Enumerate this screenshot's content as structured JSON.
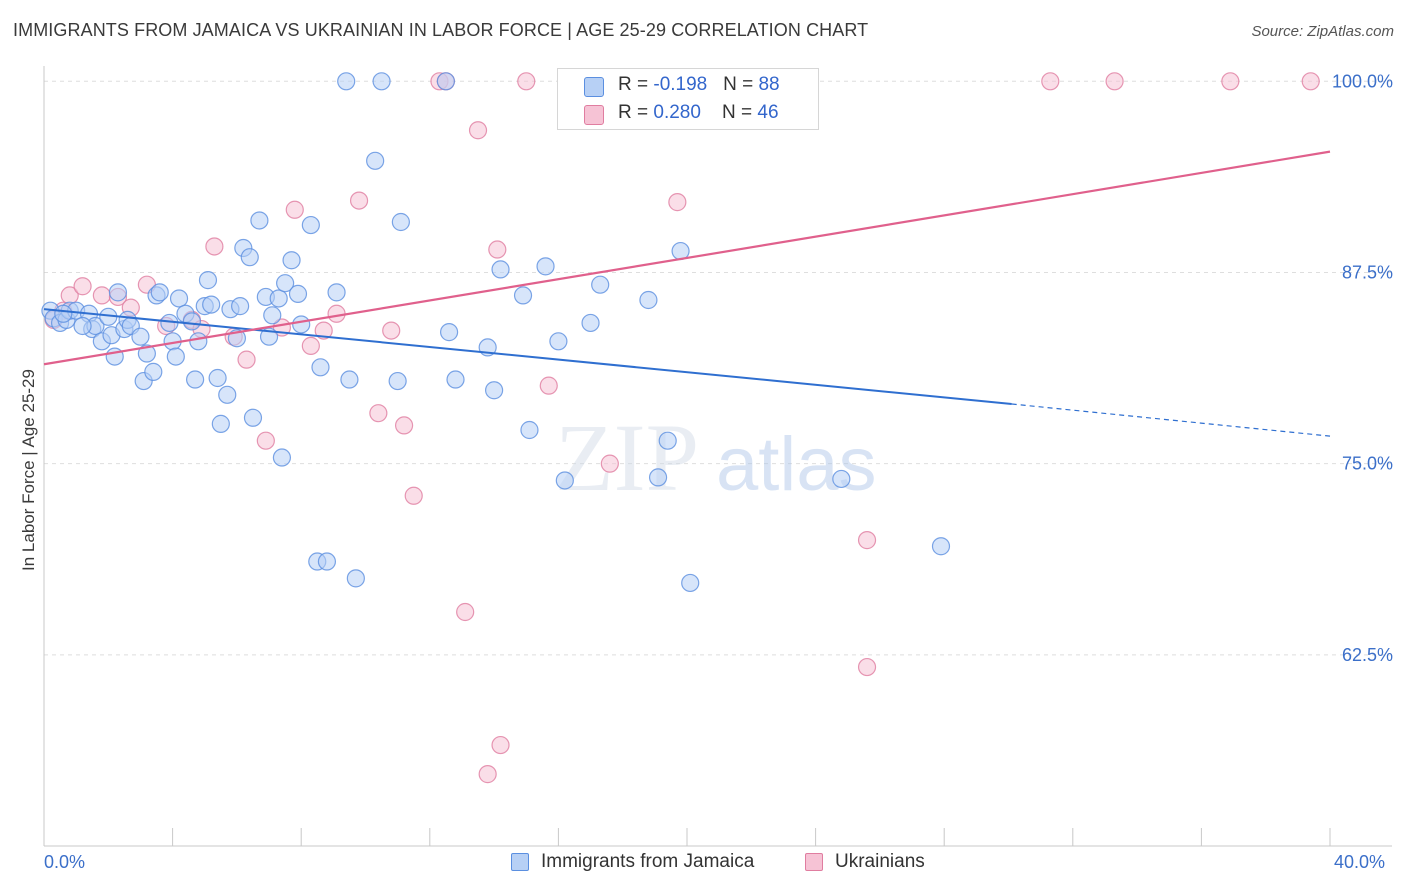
{
  "title": "IMMIGRANTS FROM JAMAICA VS UKRAINIAN IN LABOR FORCE | AGE 25-29 CORRELATION CHART",
  "source": "Source: ZipAtlas.com",
  "watermark": {
    "zip": "ZIP",
    "atlas": "atlas"
  },
  "colors": {
    "blue": "#5b8fe0",
    "blue_fill": "#b7d0f5",
    "blue_line": "#2f6fd0",
    "pink": "#e07da0",
    "pink_fill": "#f6c3d5",
    "pink_line": "#e0608c",
    "tick_label": "#3b6fc9",
    "grid": "#dedede"
  },
  "legend": [
    {
      "label": "Immigrants from Jamaica",
      "color": "blue"
    },
    {
      "label": "Ukrainians",
      "color": "pink"
    }
  ],
  "stats": [
    {
      "r_label": "R = ",
      "r_value": "-0.198",
      "n_label": "N = ",
      "n_value": "88"
    },
    {
      "r_label": "R = ",
      "r_value": "0.280",
      "n_label": "N = ",
      "n_value": "46"
    }
  ],
  "chart_data": {
    "type": "scatter",
    "title": "IMMIGRANTS FROM JAMAICA VS UKRAINIAN IN LABOR FORCE | AGE 25-29 CORRELATION CHART",
    "xlabel": "",
    "ylabel": "In Labor Force | Age 25-29",
    "xlim": [
      0,
      40
    ],
    "ylim": [
      50,
      101
    ],
    "x_tick_labels": [
      "0.0%",
      "40.0%"
    ],
    "y_ticks": [
      62.5,
      75.0,
      87.5,
      100.0
    ],
    "y_tick_labels": [
      "62.5%",
      "75.0%",
      "87.5%",
      "100.0%"
    ],
    "grid": true,
    "legend_position": "bottom",
    "series": [
      {
        "name": "Immigrants from Jamaica",
        "color": "#5b8fe0",
        "trend": {
          "x": [
            0,
            30.1
          ],
          "y": [
            85.1,
            78.9
          ],
          "dashed_extension": {
            "x": [
              30.1,
              40
            ],
            "y": [
              78.9,
              76.8
            ]
          }
        },
        "points": [
          [
            0.2,
            85.0
          ],
          [
            0.3,
            84.5
          ],
          [
            0.5,
            84.2
          ],
          [
            0.7,
            84.4
          ],
          [
            0.8,
            85.0
          ],
          [
            1.0,
            85.0
          ],
          [
            1.4,
            84.8
          ],
          [
            1.5,
            83.8
          ],
          [
            1.6,
            84.0
          ],
          [
            1.8,
            83.0
          ],
          [
            2.0,
            84.6
          ],
          [
            2.1,
            83.4
          ],
          [
            2.2,
            82.0
          ],
          [
            2.3,
            86.2
          ],
          [
            2.5,
            83.8
          ],
          [
            2.6,
            84.4
          ],
          [
            2.7,
            84.0
          ],
          [
            3.0,
            83.3
          ],
          [
            3.1,
            80.4
          ],
          [
            3.2,
            82.2
          ],
          [
            3.4,
            81.0
          ],
          [
            3.5,
            86.0
          ],
          [
            3.6,
            86.2
          ],
          [
            3.9,
            84.2
          ],
          [
            4.0,
            83.0
          ],
          [
            4.1,
            82.0
          ],
          [
            4.2,
            85.8
          ],
          [
            4.4,
            84.8
          ],
          [
            4.6,
            84.3
          ],
          [
            4.7,
            80.5
          ],
          [
            4.8,
            83.0
          ],
          [
            5.0,
            85.3
          ],
          [
            5.1,
            87.0
          ],
          [
            5.2,
            85.4
          ],
          [
            5.4,
            80.6
          ],
          [
            5.5,
            77.6
          ],
          [
            5.7,
            79.5
          ],
          [
            5.8,
            85.1
          ],
          [
            6.0,
            83.2
          ],
          [
            6.1,
            85.3
          ],
          [
            6.2,
            89.1
          ],
          [
            6.4,
            88.5
          ],
          [
            6.5,
            78.0
          ],
          [
            6.7,
            90.9
          ],
          [
            6.9,
            85.9
          ],
          [
            7.0,
            83.3
          ],
          [
            7.1,
            84.7
          ],
          [
            7.3,
            85.8
          ],
          [
            7.4,
            75.4
          ],
          [
            7.5,
            86.8
          ],
          [
            7.7,
            88.3
          ],
          [
            7.9,
            86.1
          ],
          [
            8.0,
            84.1
          ],
          [
            8.3,
            90.6
          ],
          [
            8.5,
            68.6
          ],
          [
            8.6,
            81.3
          ],
          [
            8.8,
            68.6
          ],
          [
            9.1,
            86.2
          ],
          [
            9.4,
            100.0
          ],
          [
            9.5,
            80.5
          ],
          [
            9.7,
            67.5
          ],
          [
            10.3,
            94.8
          ],
          [
            10.5,
            100.0
          ],
          [
            11.0,
            80.4
          ],
          [
            11.1,
            90.8
          ],
          [
            12.5,
            100.0
          ],
          [
            12.6,
            83.6
          ],
          [
            12.8,
            80.5
          ],
          [
            13.8,
            82.6
          ],
          [
            14.0,
            79.8
          ],
          [
            14.2,
            87.7
          ],
          [
            15.1,
            77.2
          ],
          [
            14.9,
            86.0
          ],
          [
            15.6,
            87.9
          ],
          [
            16.0,
            83.0
          ],
          [
            16.2,
            73.9
          ],
          [
            16.7,
            100.0
          ],
          [
            17.0,
            84.2
          ],
          [
            17.3,
            86.7
          ],
          [
            18.8,
            85.7
          ],
          [
            19.1,
            74.1
          ],
          [
            19.4,
            76.5
          ],
          [
            19.8,
            88.9
          ],
          [
            20.1,
            67.2
          ],
          [
            27.9,
            69.6
          ],
          [
            24.8,
            74.0
          ],
          [
            1.2,
            84.0
          ],
          [
            0.6,
            84.8
          ]
        ]
      },
      {
        "name": "Ukrainians",
        "color": "#e07da0",
        "trend": {
          "x": [
            0,
            40
          ],
          "y": [
            81.5,
            95.4
          ]
        },
        "points": [
          [
            0.3,
            84.4
          ],
          [
            0.6,
            85.0
          ],
          [
            0.8,
            86.0
          ],
          [
            1.2,
            86.6
          ],
          [
            1.8,
            86.0
          ],
          [
            2.3,
            85.9
          ],
          [
            2.7,
            85.2
          ],
          [
            3.2,
            86.7
          ],
          [
            3.8,
            84.0
          ],
          [
            4.6,
            84.4
          ],
          [
            4.9,
            83.8
          ],
          [
            5.3,
            89.2
          ],
          [
            5.9,
            83.3
          ],
          [
            6.3,
            81.8
          ],
          [
            6.9,
            76.5
          ],
          [
            7.4,
            83.9
          ],
          [
            7.8,
            91.6
          ],
          [
            8.3,
            82.7
          ],
          [
            8.7,
            83.7
          ],
          [
            9.1,
            84.8
          ],
          [
            9.8,
            92.2
          ],
          [
            10.4,
            78.3
          ],
          [
            10.8,
            83.7
          ],
          [
            11.2,
            77.5
          ],
          [
            11.5,
            72.9
          ],
          [
            12.3,
            100.0
          ],
          [
            12.5,
            100.0
          ],
          [
            13.1,
            65.3
          ],
          [
            13.5,
            96.8
          ],
          [
            13.8,
            54.7
          ],
          [
            14.1,
            89.0
          ],
          [
            14.2,
            56.6
          ],
          [
            15.0,
            100.0
          ],
          [
            15.7,
            80.1
          ],
          [
            16.5,
            100.0
          ],
          [
            17.1,
            100.0
          ],
          [
            17.6,
            75.0
          ],
          [
            19.7,
            92.1
          ],
          [
            21.8,
            100.0
          ],
          [
            22.5,
            100.0
          ],
          [
            25.6,
            70.0
          ],
          [
            25.6,
            61.7
          ],
          [
            31.3,
            100.0
          ],
          [
            33.3,
            100.0
          ],
          [
            36.9,
            100.0
          ],
          [
            39.4,
            100.0
          ]
        ]
      }
    ]
  }
}
